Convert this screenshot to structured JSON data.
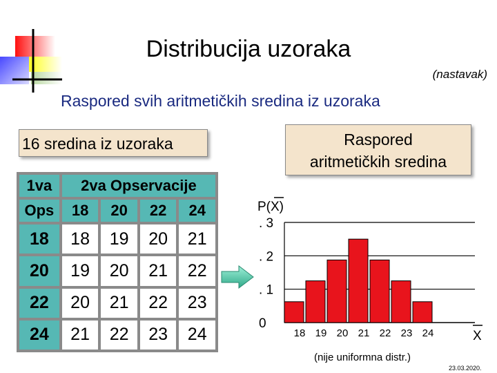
{
  "slide": {
    "title": "Distribucija uzoraka",
    "subtitle": "(nastavak)",
    "heading": "Raspored svih aritmetičkih sredina iz uzoraka",
    "left_box": "16 sredina iz uzoraka",
    "right_box_line1": "Raspored",
    "right_box_line2": "aritmetičkih  sredina",
    "date": "23.03.2020."
  },
  "table": {
    "header_row1": [
      "1va",
      "2va Opservacije"
    ],
    "header_row2": [
      "Ops",
      "18",
      "20",
      "22",
      "24"
    ],
    "rows": [
      {
        "label": "18",
        "values": [
          "18",
          "19",
          "20",
          "21"
        ]
      },
      {
        "label": "20",
        "values": [
          "19",
          "20",
          "21",
          "22"
        ]
      },
      {
        "label": "22",
        "values": [
          "20",
          "21",
          "22",
          "23"
        ]
      },
      {
        "label": "24",
        "values": [
          "21",
          "22",
          "23",
          "24"
        ]
      }
    ]
  },
  "chart_data": {
    "type": "bar",
    "categories": [
      "18",
      "19",
      "20",
      "21",
      "22",
      "23",
      "24"
    ],
    "values": [
      0.0625,
      0.125,
      0.1875,
      0.25,
      0.1875,
      0.125,
      0.0625
    ],
    "ylabel": "P(X)",
    "xlabel": "X",
    "y_ticks": [
      ". 3",
      ". 2",
      ". 1",
      "0"
    ],
    "ylim": [
      0,
      0.3
    ],
    "grid": true,
    "bar_color": "#e8141c",
    "caption": "(nije uniformna distr.)"
  },
  "colors": {
    "accent_red": "#e8141c",
    "teal": "#56b8b4",
    "box_fill": "#f4e4cc",
    "heading_blue": "#1a2a80",
    "arrow_green": "#4fc8a8"
  },
  "icons": {
    "corner_decoration": "color-squares-crosshair-logo",
    "arrow": "right-arrow-icon"
  }
}
